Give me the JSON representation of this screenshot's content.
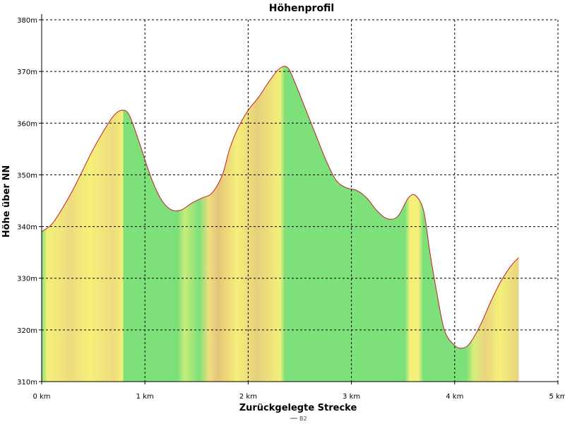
{
  "chart_data": {
    "type": "area",
    "title": "Höhenprofil",
    "xlabel": "Zurückgelegte Strecke",
    "ylabel": "Höhe über NN",
    "xlim": [
      0,
      5
    ],
    "ylim": [
      310,
      380
    ],
    "x_ticks": [
      {
        "value": 0,
        "label": "0 km"
      },
      {
        "value": 1,
        "label": "1 km"
      },
      {
        "value": 2,
        "label": "2 km"
      },
      {
        "value": 3,
        "label": "3 km"
      },
      {
        "value": 4,
        "label": "4 km"
      },
      {
        "value": 5,
        "label": "5 km"
      }
    ],
    "y_ticks": [
      {
        "value": 310,
        "label": "310m"
      },
      {
        "value": 320,
        "label": "320m"
      },
      {
        "value": 330,
        "label": "330m"
      },
      {
        "value": 340,
        "label": "340m"
      },
      {
        "value": 350,
        "label": "350m"
      },
      {
        "value": 360,
        "label": "360m"
      },
      {
        "value": 370,
        "label": "370m"
      },
      {
        "value": 380,
        "label": "380m"
      }
    ],
    "grid": true,
    "legend_position": "bottom-center",
    "series": [
      {
        "name": "B2",
        "line_color": "#c0202a",
        "x": [
          0,
          0.1,
          0.2,
          0.3,
          0.4,
          0.5,
          0.6,
          0.7,
          0.78,
          0.85,
          0.95,
          1.05,
          1.15,
          1.25,
          1.35,
          1.45,
          1.55,
          1.65,
          1.75,
          1.82,
          1.9,
          2.0,
          2.1,
          2.2,
          2.3,
          2.38,
          2.45,
          2.55,
          2.65,
          2.75,
          2.85,
          2.95,
          3.05,
          3.15,
          3.25,
          3.35,
          3.45,
          3.55,
          3.62,
          3.7,
          3.76,
          3.82,
          3.9,
          4.0,
          4.08,
          4.15,
          4.25,
          4.35,
          4.45,
          4.55,
          4.62
        ],
        "y": [
          339,
          340.5,
          343.5,
          347,
          351,
          355,
          358.5,
          361.5,
          362.5,
          361.5,
          356,
          350,
          345.5,
          343.3,
          343.2,
          344.5,
          345.5,
          346.5,
          350,
          355,
          359,
          362.5,
          365,
          368,
          370.5,
          370.8,
          368,
          363,
          358,
          353,
          349,
          347.5,
          347,
          345.5,
          343,
          341.5,
          342,
          345.5,
          346,
          343,
          335,
          328,
          320,
          317,
          316.5,
          317.5,
          321,
          325.5,
          329.5,
          332.5,
          334
        ]
      }
    ],
    "colors": {
      "green": "#7de07a",
      "yellow": "#f4f07a",
      "orange": "#e8c878",
      "line": "#c0202a",
      "grid": "#000000"
    }
  }
}
